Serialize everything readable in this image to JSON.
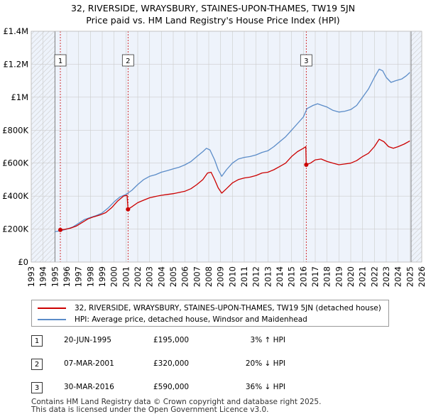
{
  "header": {
    "title_line1": "32, RIVERSIDE, WRAYSBURY, STAINES-UPON-THAMES, TW19 5JN",
    "title_line2": "Price paid vs. HM Land Registry's House Price Index (HPI)"
  },
  "chart_data": {
    "type": "line",
    "x_range": [
      1993,
      2026
    ],
    "ylim": [
      0,
      1400000
    ],
    "y_ticks": [
      0,
      200000,
      400000,
      600000,
      800000,
      1000000,
      1200000,
      1400000
    ],
    "y_tick_labels": [
      "£0",
      "£200K",
      "£400K",
      "£600K",
      "£800K",
      "£1M",
      "£1.2M",
      "£1.4M"
    ],
    "x_ticks": [
      1993,
      1994,
      1995,
      1996,
      1997,
      1998,
      1999,
      2000,
      2001,
      2002,
      2003,
      2004,
      2005,
      2006,
      2007,
      2008,
      2009,
      2010,
      2011,
      2012,
      2013,
      2014,
      2015,
      2016,
      2017,
      2018,
      2019,
      2020,
      2021,
      2022,
      2023,
      2024,
      2025,
      2026
    ],
    "hatched_ranges": [
      [
        1993,
        1995.0
      ],
      [
        2025.1,
        2026
      ]
    ],
    "grid": true,
    "series": [
      {
        "name": "32, RIVERSIDE, WRAYSBURY, STAINES-UPON-THAMES, TW19 5JN (detached house)",
        "color": "#cc0000",
        "points": [
          [
            1995.46,
            195000
          ],
          [
            1995.8,
            198000
          ],
          [
            1996.3,
            205000
          ],
          [
            1996.8,
            218000
          ],
          [
            1997.3,
            240000
          ],
          [
            1997.8,
            262000
          ],
          [
            1998.3,
            275000
          ],
          [
            1998.8,
            285000
          ],
          [
            1999.3,
            300000
          ],
          [
            1999.8,
            330000
          ],
          [
            2000.3,
            370000
          ],
          [
            2000.8,
            400000
          ],
          [
            2001.1,
            405000
          ],
          [
            2001.18,
            320000
          ],
          [
            2001.5,
            335000
          ],
          [
            2002.0,
            360000
          ],
          [
            2002.5,
            375000
          ],
          [
            2003.0,
            390000
          ],
          [
            2003.5,
            398000
          ],
          [
            2004.0,
            405000
          ],
          [
            2004.5,
            410000
          ],
          [
            2005.0,
            415000
          ],
          [
            2005.5,
            422000
          ],
          [
            2006.0,
            430000
          ],
          [
            2006.5,
            445000
          ],
          [
            2007.0,
            470000
          ],
          [
            2007.5,
            500000
          ],
          [
            2007.9,
            540000
          ],
          [
            2008.2,
            545000
          ],
          [
            2008.5,
            500000
          ],
          [
            2008.8,
            450000
          ],
          [
            2009.1,
            418000
          ],
          [
            2009.5,
            445000
          ],
          [
            2010.0,
            480000
          ],
          [
            2010.5,
            500000
          ],
          [
            2011.0,
            510000
          ],
          [
            2011.5,
            515000
          ],
          [
            2012.0,
            525000
          ],
          [
            2012.5,
            540000
          ],
          [
            2013.0,
            545000
          ],
          [
            2013.5,
            560000
          ],
          [
            2014.0,
            580000
          ],
          [
            2014.5,
            600000
          ],
          [
            2015.0,
            640000
          ],
          [
            2015.5,
            670000
          ],
          [
            2016.0,
            690000
          ],
          [
            2016.2,
            700000
          ],
          [
            2016.24,
            590000
          ],
          [
            2016.6,
            600000
          ],
          [
            2017.0,
            620000
          ],
          [
            2017.5,
            625000
          ],
          [
            2018.0,
            610000
          ],
          [
            2018.5,
            600000
          ],
          [
            2019.0,
            590000
          ],
          [
            2019.5,
            595000
          ],
          [
            2020.0,
            600000
          ],
          [
            2020.5,
            615000
          ],
          [
            2021.0,
            640000
          ],
          [
            2021.5,
            660000
          ],
          [
            2022.0,
            700000
          ],
          [
            2022.4,
            745000
          ],
          [
            2022.8,
            730000
          ],
          [
            2023.2,
            700000
          ],
          [
            2023.6,
            690000
          ],
          [
            2024.0,
            700000
          ],
          [
            2024.5,
            715000
          ],
          [
            2025.0,
            735000
          ]
        ]
      },
      {
        "name": "HPI: Average price, detached house, Windsor and Maidenhead",
        "color": "#5b8cc8",
        "points": [
          [
            1995.0,
            185000
          ],
          [
            1995.5,
            190000
          ],
          [
            1996.0,
            200000
          ],
          [
            1996.5,
            212000
          ],
          [
            1997.0,
            235000
          ],
          [
            1997.5,
            258000
          ],
          [
            1998.0,
            270000
          ],
          [
            1998.5,
            282000
          ],
          [
            1999.0,
            298000
          ],
          [
            1999.5,
            328000
          ],
          [
            2000.0,
            365000
          ],
          [
            2000.5,
            395000
          ],
          [
            2001.0,
            410000
          ],
          [
            2001.5,
            435000
          ],
          [
            2002.0,
            470000
          ],
          [
            2002.5,
            500000
          ],
          [
            2003.0,
            520000
          ],
          [
            2003.5,
            530000
          ],
          [
            2004.0,
            545000
          ],
          [
            2004.5,
            555000
          ],
          [
            2005.0,
            565000
          ],
          [
            2005.5,
            575000
          ],
          [
            2006.0,
            590000
          ],
          [
            2006.5,
            610000
          ],
          [
            2007.0,
            640000
          ],
          [
            2007.5,
            670000
          ],
          [
            2007.8,
            690000
          ],
          [
            2008.1,
            680000
          ],
          [
            2008.5,
            620000
          ],
          [
            2008.8,
            560000
          ],
          [
            2009.1,
            520000
          ],
          [
            2009.5,
            560000
          ],
          [
            2010.0,
            600000
          ],
          [
            2010.5,
            625000
          ],
          [
            2011.0,
            635000
          ],
          [
            2011.5,
            640000
          ],
          [
            2012.0,
            650000
          ],
          [
            2012.5,
            665000
          ],
          [
            2013.0,
            675000
          ],
          [
            2013.5,
            700000
          ],
          [
            2014.0,
            730000
          ],
          [
            2014.5,
            760000
          ],
          [
            2015.0,
            800000
          ],
          [
            2015.5,
            840000
          ],
          [
            2016.0,
            880000
          ],
          [
            2016.3,
            930000
          ],
          [
            2016.8,
            950000
          ],
          [
            2017.2,
            960000
          ],
          [
            2017.6,
            950000
          ],
          [
            2018.0,
            940000
          ],
          [
            2018.5,
            920000
          ],
          [
            2019.0,
            910000
          ],
          [
            2019.5,
            915000
          ],
          [
            2020.0,
            925000
          ],
          [
            2020.5,
            950000
          ],
          [
            2021.0,
            1000000
          ],
          [
            2021.5,
            1050000
          ],
          [
            2022.0,
            1120000
          ],
          [
            2022.4,
            1170000
          ],
          [
            2022.7,
            1160000
          ],
          [
            2023.0,
            1120000
          ],
          [
            2023.4,
            1090000
          ],
          [
            2023.8,
            1100000
          ],
          [
            2024.3,
            1110000
          ],
          [
            2024.7,
            1130000
          ],
          [
            2025.0,
            1150000
          ]
        ]
      }
    ],
    "sales": [
      {
        "marker": "1",
        "x": 1995.46,
        "price": 195000
      },
      {
        "marker": "2",
        "x": 2001.18,
        "price": 320000
      },
      {
        "marker": "3",
        "x": 2016.24,
        "price": 590000
      }
    ]
  },
  "legend": {
    "property_label": "32, RIVERSIDE, WRAYSBURY, STAINES-UPON-THAMES, TW19 5JN (detached house)",
    "hpi_label": "HPI: Average price, detached house, Windsor and Maidenhead"
  },
  "sales_table": [
    {
      "marker": "1",
      "date": "20-JUN-1995",
      "price": "£195,000",
      "hpi": "3% ↑ HPI"
    },
    {
      "marker": "2",
      "date": "07-MAR-2001",
      "price": "£320,000",
      "hpi": "20% ↓ HPI"
    },
    {
      "marker": "3",
      "date": "30-MAR-2016",
      "price": "£590,000",
      "hpi": "36% ↓ HPI"
    }
  ],
  "footer": {
    "line1": "Contains HM Land Registry data © Crown copyright and database right 2025.",
    "line2": "This data is licensed under the Open Government Licence v3.0."
  },
  "colors": {
    "property": "#cc0000",
    "hpi": "#5b8cc8",
    "grid": "#cccccc",
    "plot_bg": "#eef3fb",
    "sale_line": "#cc0000"
  }
}
